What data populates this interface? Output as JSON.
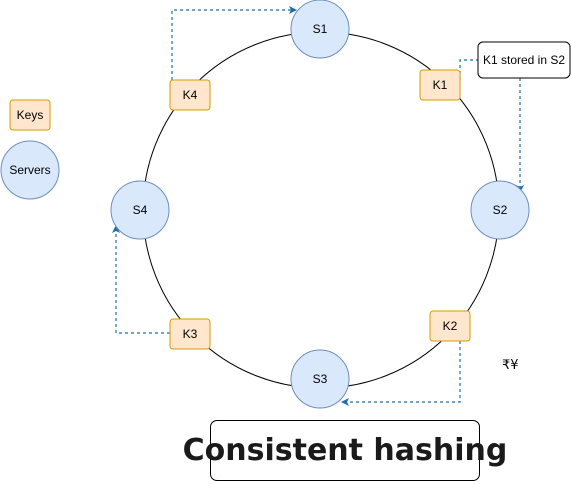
{
  "title": "Consistent hashing",
  "legend": {
    "keys_label": "Keys",
    "servers_label": "Servers"
  },
  "servers": {
    "s1": "S1",
    "s2": "S2",
    "s3": "S3",
    "s4": "S4"
  },
  "keys": {
    "k1": "K1",
    "k2": "K2",
    "k3": "K3",
    "k4": "K4"
  },
  "callout": {
    "k1_note": "K1 stored in S2"
  },
  "stray_text": "₹¥",
  "colors": {
    "server_fill": "#dae8fc",
    "server_stroke": "#6c8ebf",
    "key_fill": "#ffe6cc",
    "key_stroke": "#d79b00",
    "arrow": "#1a6fa8",
    "ring": "#000000"
  }
}
